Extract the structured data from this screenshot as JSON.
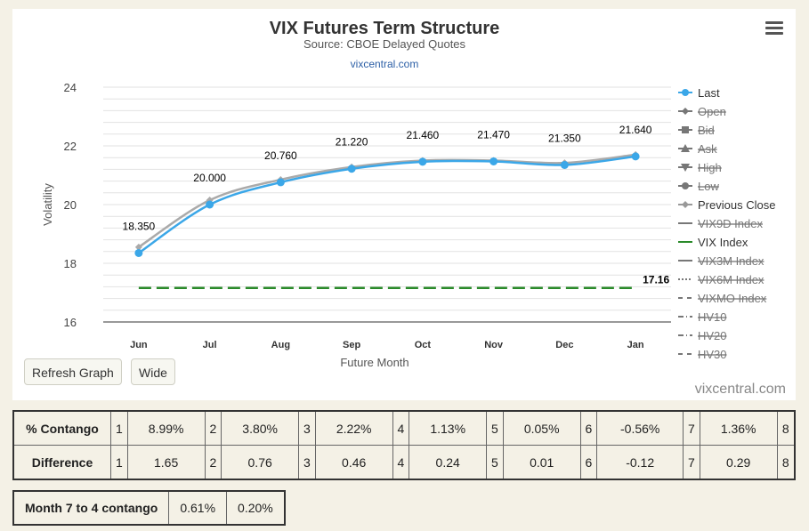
{
  "chart_data": {
    "type": "line",
    "title": "VIX Futures Term Structure",
    "subtitle": "Source: CBOE Delayed Quotes",
    "credit_link": "vixcentral.com",
    "xlabel": "Future Month",
    "ylabel": "Volatility",
    "categories": [
      "Jun",
      "Jul",
      "Aug",
      "Sep",
      "Oct",
      "Nov",
      "Dec",
      "Jan"
    ],
    "ylim": [
      16,
      24
    ],
    "yticks": [
      16,
      18,
      20,
      22,
      24
    ],
    "grid": true,
    "legend_position": "right",
    "series": [
      {
        "name": "Last",
        "values": [
          18.35,
          20.0,
          20.76,
          21.22,
          21.46,
          21.47,
          21.35,
          21.64
        ],
        "data_labels": [
          "18.350",
          "20.000",
          "20.760",
          "21.220",
          "21.460",
          "21.470",
          "21.350",
          "21.640"
        ],
        "color": "#3ba7e8"
      },
      {
        "name": "Previous Close",
        "values": [
          18.55,
          20.15,
          20.85,
          21.28,
          21.5,
          21.5,
          21.42,
          21.7
        ],
        "color": "#aaaaaa"
      },
      {
        "name": "VIX Index",
        "constant": 17.16,
        "label": "17.16",
        "color": "#2a8a2a"
      }
    ],
    "legend": [
      {
        "label": "Last",
        "symbol": "circle",
        "color": "#3ba7e8",
        "hidden": false,
        "dash": "solid"
      },
      {
        "label": "Open",
        "symbol": "diamond",
        "color": "#666666",
        "hidden": true,
        "dash": "solid"
      },
      {
        "label": "Bid",
        "symbol": "square",
        "color": "#666666",
        "hidden": true,
        "dash": "solid"
      },
      {
        "label": "Ask",
        "symbol": "triangle",
        "color": "#666666",
        "hidden": true,
        "dash": "solid"
      },
      {
        "label": "High",
        "symbol": "triangle-down",
        "color": "#666666",
        "hidden": true,
        "dash": "solid"
      },
      {
        "label": "Low",
        "symbol": "circle",
        "color": "#666666",
        "hidden": true,
        "dash": "solid"
      },
      {
        "label": "Previous Close",
        "symbol": "diamond",
        "color": "#999999",
        "hidden": false,
        "dash": "solid"
      },
      {
        "label": "VIX9D Index",
        "symbol": "none",
        "color": "#888888",
        "hidden": true,
        "dash": "solid"
      },
      {
        "label": "VIX Index",
        "symbol": "none",
        "color": "#2a8a2a",
        "hidden": false,
        "dash": "solid"
      },
      {
        "label": "VIX3M Index",
        "symbol": "none",
        "color": "#888888",
        "hidden": true,
        "dash": "solid"
      },
      {
        "label": "VIX6M Index",
        "symbol": "none",
        "color": "#666666",
        "hidden": true,
        "dash": "dotted"
      },
      {
        "label": "VIXMO Index",
        "symbol": "none",
        "color": "#666666",
        "hidden": true,
        "dash": "dashed"
      },
      {
        "label": "HV10",
        "symbol": "none",
        "color": "#666666",
        "hidden": true,
        "dash": "dashdot"
      },
      {
        "label": "HV20",
        "symbol": "none",
        "color": "#666666",
        "hidden": true,
        "dash": "dashdot"
      },
      {
        "label": "HV30",
        "symbol": "none",
        "color": "#666666",
        "hidden": true,
        "dash": "dashed"
      }
    ]
  },
  "buttons": {
    "refresh": "Refresh Graph",
    "wide": "Wide"
  },
  "watermark": "vixcentral.com",
  "contango_table": {
    "rows": [
      {
        "label": "% Contango",
        "cells": [
          "1",
          "8.99%",
          "2",
          "3.80%",
          "3",
          "2.22%",
          "4",
          "1.13%",
          "5",
          "0.05%",
          "6",
          "-0.56%",
          "7",
          "1.36%",
          "8"
        ]
      },
      {
        "label": "Difference",
        "cells": [
          "1",
          "1.65",
          "2",
          "0.76",
          "3",
          "0.46",
          "4",
          "0.24",
          "5",
          "0.01",
          "6",
          "-0.12",
          "7",
          "0.29",
          "8"
        ]
      }
    ]
  },
  "month_table": {
    "label": "Month 7 to 4 contango",
    "values": [
      "0.61%",
      "0.20%"
    ]
  }
}
